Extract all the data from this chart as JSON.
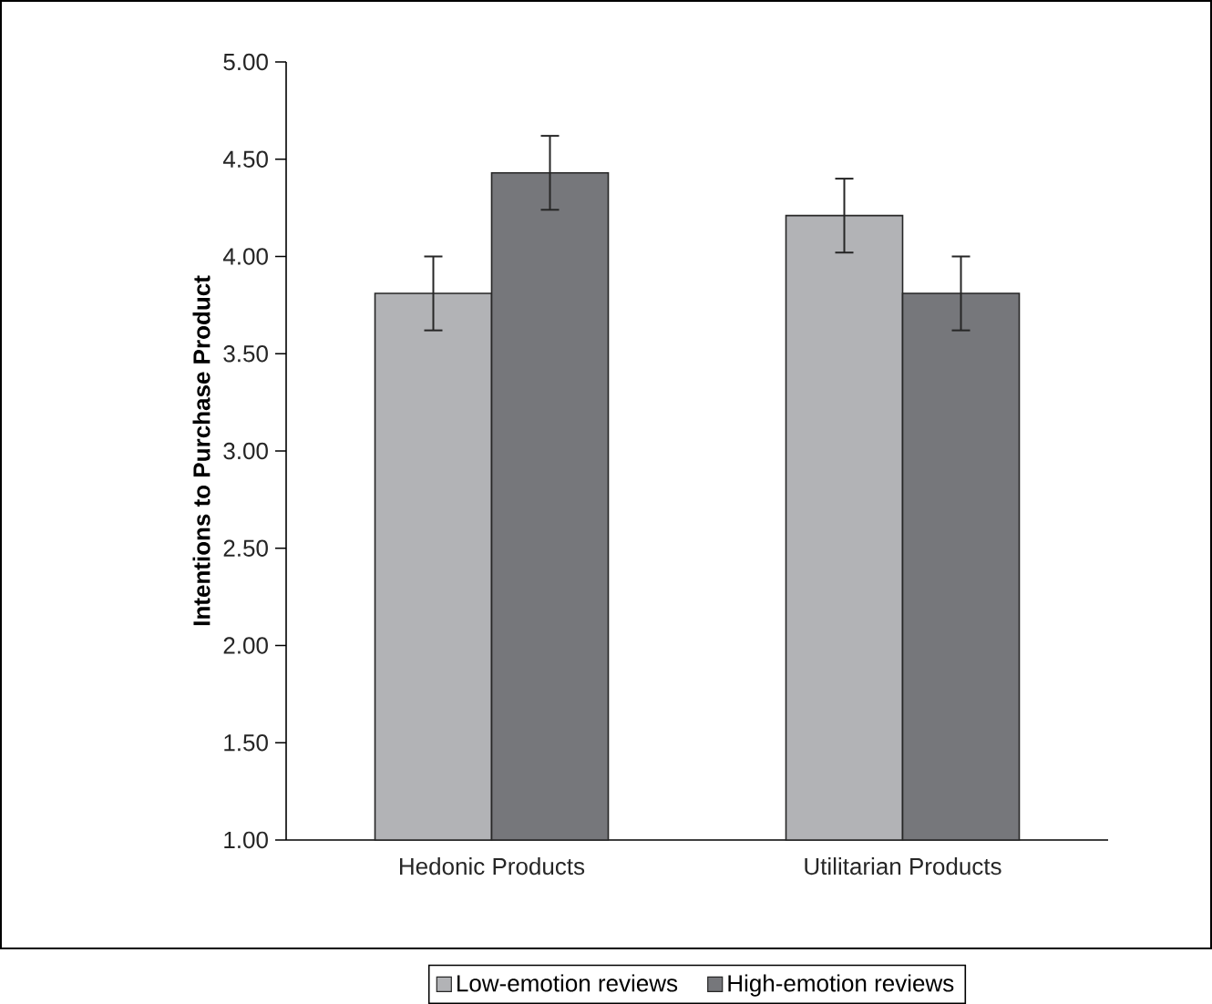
{
  "chart_data": {
    "type": "bar",
    "categories": [
      "Hedonic Products",
      "Utilitarian Products"
    ],
    "series": [
      {
        "name": "Low-emotion reviews",
        "color": "#b2b3b6",
        "values": [
          3.81,
          4.21
        ],
        "errors": [
          0.19,
          0.19
        ]
      },
      {
        "name": "High-emotion reviews",
        "color": "#76777b",
        "values": [
          4.43,
          3.81
        ],
        "errors": [
          0.19,
          0.19
        ]
      }
    ],
    "ylabel": "Intentions to Purchase Product",
    "ylim": [
      1,
      5
    ],
    "yticks": [
      {
        "value": 1,
        "label": "1.00"
      },
      {
        "value": 1.5,
        "label": "1.50"
      },
      {
        "value": 2,
        "label": "2.00"
      },
      {
        "value": 2.5,
        "label": "2.50"
      },
      {
        "value": 3,
        "label": "3.00"
      },
      {
        "value": 3.5,
        "label": "3.50"
      },
      {
        "value": 4,
        "label": "4.00"
      },
      {
        "value": 4.5,
        "label": "4.50"
      },
      {
        "value": 5,
        "label": "5.00"
      }
    ],
    "grid": false,
    "legend": "bottom"
  }
}
